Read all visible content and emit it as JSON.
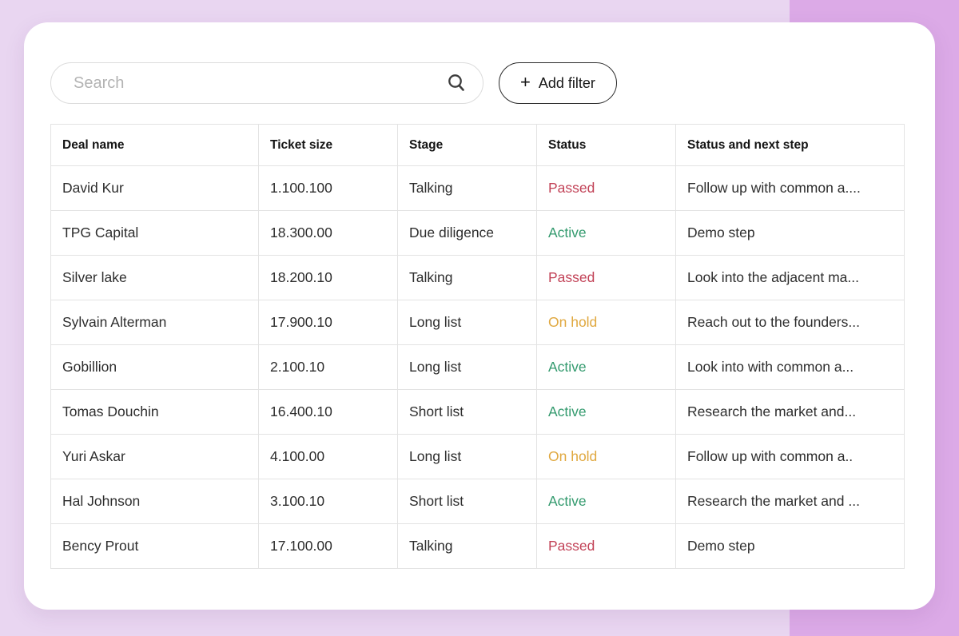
{
  "colors": {
    "background": "#e9d6f1",
    "accent_block": "#dcaae7",
    "card": "#ffffff",
    "table_border": "#e3e3e3",
    "status_passed": "#c24257",
    "status_active": "#339a6e",
    "status_on_hold": "#e0a83f"
  },
  "toolbar": {
    "search_placeholder": "Search",
    "search_icon": "search-icon",
    "add_filter": {
      "icon_glyph": "+",
      "icon_name": "plus-icon",
      "label": "Add filter"
    }
  },
  "table": {
    "columns": [
      "Deal name",
      "Ticket size",
      "Stage",
      "Status",
      "Status and next step"
    ],
    "rows": [
      {
        "deal_name": "David Kur",
        "ticket_size": "1.100.100",
        "stage": "Talking",
        "status": "Passed",
        "status_color": "status_passed",
        "next_step": "Follow up with common a...."
      },
      {
        "deal_name": "TPG Capital",
        "ticket_size": "18.300.00",
        "stage": "Due diligence",
        "status": "Active",
        "status_color": "status_active",
        "next_step": "Demo step"
      },
      {
        "deal_name": "Silver lake",
        "ticket_size": "18.200.10",
        "stage": "Talking",
        "status": "Passed",
        "status_color": "status_passed",
        "next_step": "Look into the adjacent ma..."
      },
      {
        "deal_name": "Sylvain Alterman",
        "ticket_size": "17.900.10",
        "stage": "Long list",
        "status": "On hold",
        "status_color": "status_on_hold",
        "next_step": "Reach out to the founders..."
      },
      {
        "deal_name": "Gobillion",
        "ticket_size": "2.100.10",
        "stage": "Long list",
        "status": "Active",
        "status_color": "status_active",
        "next_step": "Look into with common a..."
      },
      {
        "deal_name": "Tomas Douchin",
        "ticket_size": "16.400.10",
        "stage": "Short list",
        "status": "Active",
        "status_color": "status_active",
        "next_step": "Research the market and..."
      },
      {
        "deal_name": "Yuri Askar",
        "ticket_size": "4.100.00",
        "stage": "Long list",
        "status": "On hold",
        "status_color": "status_on_hold",
        "next_step": "Follow up with common a.."
      },
      {
        "deal_name": "Hal Johnson",
        "ticket_size": "3.100.10",
        "stage": "Short list",
        "status": "Active",
        "status_color": "status_active",
        "next_step": "Research the market and ..."
      },
      {
        "deal_name": "Bency Prout",
        "ticket_size": "17.100.00",
        "stage": "Talking",
        "status": "Passed",
        "status_color": "status_passed",
        "next_step": "Demo step"
      }
    ]
  }
}
